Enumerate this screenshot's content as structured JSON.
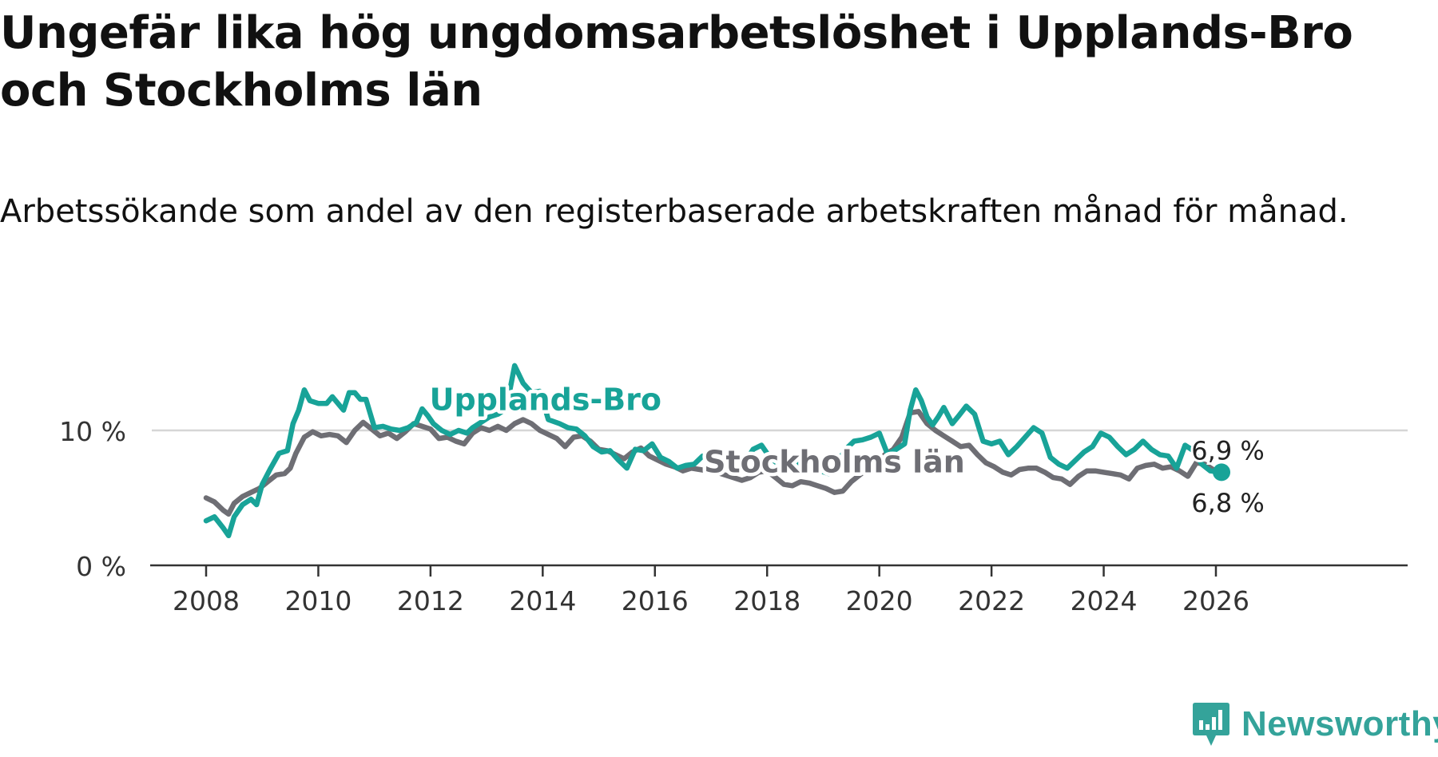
{
  "title": "Ungefär lika hög ungdomsarbetslöshet i Upplands-Bro och Stockholms län",
  "subtitle": "Arbetssökande som andel av den registerbaserade arbetskraften månad för månad.",
  "brand": {
    "name": "Newsworthy",
    "icon": "newsworthy-logo-icon",
    "color": "#34a39a"
  },
  "chart_data": {
    "type": "line",
    "title": "Ungefär lika hög ungdomsarbetslöshet i Upplands-Bro och Stockholms län",
    "subtitle": "Arbetssökande som andel av den registerbaserade arbetskraften månad för månad.",
    "xlabel": "",
    "ylabel": "",
    "xlim": [
      2007.4,
      2027.0
    ],
    "ylim": [
      0,
      15
    ],
    "x_ticks": [
      2008,
      2010,
      2012,
      2014,
      2016,
      2018,
      2020,
      2022,
      2024,
      2026
    ],
    "x_tick_labels": [
      "2008",
      "2010",
      "2012",
      "2014",
      "2016",
      "2018",
      "2020",
      "2022",
      "2024",
      "2026"
    ],
    "y_ticks": [
      0,
      10
    ],
    "y_tick_labels": [
      "0 %",
      "10 %"
    ],
    "grid": "horizontal",
    "series": [
      {
        "name": "Upplands-Bro",
        "color": "#18a398",
        "label_x": 2014.05,
        "label_y": 11.5,
        "end_label": "6,9 %",
        "points": [
          [
            2008.0,
            3.3
          ],
          [
            2008.15,
            3.6
          ],
          [
            2008.3,
            2.8
          ],
          [
            2008.4,
            2.2
          ],
          [
            2008.5,
            3.6
          ],
          [
            2008.65,
            4.5
          ],
          [
            2008.8,
            4.9
          ],
          [
            2008.9,
            4.5
          ],
          [
            2009.0,
            6.0
          ],
          [
            2009.15,
            7.2
          ],
          [
            2009.3,
            8.3
          ],
          [
            2009.45,
            8.5
          ],
          [
            2009.55,
            10.5
          ],
          [
            2009.65,
            11.5
          ],
          [
            2009.75,
            13.0
          ],
          [
            2009.85,
            12.2
          ],
          [
            2010.0,
            12.0
          ],
          [
            2010.15,
            12.0
          ],
          [
            2010.25,
            12.5
          ],
          [
            2010.35,
            12.0
          ],
          [
            2010.45,
            11.5
          ],
          [
            2010.55,
            12.8
          ],
          [
            2010.65,
            12.8
          ],
          [
            2010.75,
            12.3
          ],
          [
            2010.85,
            12.3
          ],
          [
            2011.0,
            10.2
          ],
          [
            2011.15,
            10.3
          ],
          [
            2011.3,
            10.1
          ],
          [
            2011.45,
            10.0
          ],
          [
            2011.6,
            10.2
          ],
          [
            2011.75,
            10.6
          ],
          [
            2011.85,
            11.6
          ],
          [
            2011.95,
            11.1
          ],
          [
            2012.05,
            10.5
          ],
          [
            2012.2,
            10.0
          ],
          [
            2012.35,
            9.7
          ],
          [
            2012.5,
            10.0
          ],
          [
            2012.65,
            9.8
          ],
          [
            2012.75,
            10.2
          ],
          [
            2012.9,
            10.6
          ],
          [
            2013.05,
            11.0
          ],
          [
            2013.2,
            11.2
          ],
          [
            2013.35,
            11.6
          ],
          [
            2013.5,
            14.8
          ],
          [
            2013.65,
            13.5
          ],
          [
            2013.8,
            12.8
          ],
          [
            2013.95,
            12.9
          ],
          [
            2014.1,
            10.8
          ],
          [
            2014.3,
            10.5
          ],
          [
            2014.45,
            10.2
          ],
          [
            2014.6,
            10.1
          ],
          [
            2014.75,
            9.6
          ],
          [
            2014.9,
            8.8
          ],
          [
            2015.05,
            8.4
          ],
          [
            2015.2,
            8.5
          ],
          [
            2015.35,
            7.8
          ],
          [
            2015.5,
            7.2
          ],
          [
            2015.65,
            8.6
          ],
          [
            2015.8,
            8.5
          ],
          [
            2015.95,
            9.0
          ],
          [
            2016.1,
            8.0
          ],
          [
            2016.25,
            7.7
          ],
          [
            2016.4,
            7.2
          ],
          [
            2016.55,
            7.4
          ],
          [
            2016.7,
            7.5
          ],
          [
            2016.85,
            8.1
          ],
          [
            2017.0,
            8.1
          ],
          [
            2017.15,
            7.4
          ],
          [
            2017.3,
            7.2
          ],
          [
            2017.45,
            8.0
          ],
          [
            2017.6,
            7.6
          ],
          [
            2017.75,
            8.6
          ],
          [
            2017.9,
            8.9
          ],
          [
            2018.05,
            8.0
          ],
          [
            2018.2,
            7.5
          ],
          [
            2018.35,
            7.2
          ],
          [
            2018.5,
            7.4
          ],
          [
            2018.65,
            7.6
          ],
          [
            2018.8,
            7.3
          ],
          [
            2018.95,
            7.0
          ],
          [
            2019.1,
            6.8
          ],
          [
            2019.25,
            7.6
          ],
          [
            2019.4,
            8.6
          ],
          [
            2019.55,
            9.2
          ],
          [
            2019.7,
            9.3
          ],
          [
            2019.85,
            9.5
          ],
          [
            2020.0,
            9.8
          ],
          [
            2020.15,
            8.2
          ],
          [
            2020.3,
            8.6
          ],
          [
            2020.45,
            9.0
          ],
          [
            2020.55,
            11.5
          ],
          [
            2020.65,
            13.0
          ],
          [
            2020.75,
            12.2
          ],
          [
            2020.85,
            11.0
          ],
          [
            2020.95,
            10.4
          ],
          [
            2021.05,
            11.0
          ],
          [
            2021.15,
            11.7
          ],
          [
            2021.3,
            10.5
          ],
          [
            2021.4,
            11.0
          ],
          [
            2021.55,
            11.8
          ],
          [
            2021.7,
            11.2
          ],
          [
            2021.85,
            9.2
          ],
          [
            2022.0,
            9.0
          ],
          [
            2022.15,
            9.2
          ],
          [
            2022.3,
            8.2
          ],
          [
            2022.45,
            8.8
          ],
          [
            2022.6,
            9.5
          ],
          [
            2022.75,
            10.2
          ],
          [
            2022.9,
            9.8
          ],
          [
            2023.05,
            8.0
          ],
          [
            2023.2,
            7.5
          ],
          [
            2023.35,
            7.2
          ],
          [
            2023.5,
            7.8
          ],
          [
            2023.65,
            8.4
          ],
          [
            2023.8,
            8.8
          ],
          [
            2023.95,
            9.8
          ],
          [
            2024.1,
            9.5
          ],
          [
            2024.25,
            8.8
          ],
          [
            2024.4,
            8.2
          ],
          [
            2024.55,
            8.6
          ],
          [
            2024.7,
            9.2
          ],
          [
            2024.85,
            8.6
          ],
          [
            2025.0,
            8.2
          ],
          [
            2025.15,
            8.1
          ],
          [
            2025.3,
            7.2
          ],
          [
            2025.45,
            8.9
          ],
          [
            2025.6,
            8.5
          ],
          [
            2025.75,
            7.5
          ],
          [
            2025.9,
            7.0
          ],
          [
            2026.1,
            6.9
          ]
        ]
      },
      {
        "name": "Stockholms län",
        "color": "#6e6e74",
        "label_x": 2019.2,
        "label_y": 6.9,
        "end_label": "6,8 %",
        "points": [
          [
            2008.0,
            5.0
          ],
          [
            2008.15,
            4.7
          ],
          [
            2008.3,
            4.1
          ],
          [
            2008.4,
            3.8
          ],
          [
            2008.5,
            4.6
          ],
          [
            2008.65,
            5.1
          ],
          [
            2008.8,
            5.4
          ],
          [
            2008.95,
            5.7
          ],
          [
            2009.1,
            6.2
          ],
          [
            2009.25,
            6.7
          ],
          [
            2009.4,
            6.8
          ],
          [
            2009.5,
            7.2
          ],
          [
            2009.6,
            8.3
          ],
          [
            2009.75,
            9.5
          ],
          [
            2009.9,
            9.9
          ],
          [
            2010.05,
            9.6
          ],
          [
            2010.2,
            9.7
          ],
          [
            2010.35,
            9.6
          ],
          [
            2010.5,
            9.1
          ],
          [
            2010.65,
            10.0
          ],
          [
            2010.8,
            10.6
          ],
          [
            2010.95,
            10.1
          ],
          [
            2011.1,
            9.6
          ],
          [
            2011.25,
            9.8
          ],
          [
            2011.4,
            9.4
          ],
          [
            2011.55,
            9.9
          ],
          [
            2011.7,
            10.5
          ],
          [
            2011.85,
            10.3
          ],
          [
            2012.0,
            10.1
          ],
          [
            2012.15,
            9.4
          ],
          [
            2012.3,
            9.5
          ],
          [
            2012.45,
            9.2
          ],
          [
            2012.6,
            9.0
          ],
          [
            2012.75,
            9.8
          ],
          [
            2012.9,
            10.2
          ],
          [
            2013.05,
            10.0
          ],
          [
            2013.2,
            10.3
          ],
          [
            2013.35,
            10.0
          ],
          [
            2013.5,
            10.5
          ],
          [
            2013.65,
            10.8
          ],
          [
            2013.8,
            10.5
          ],
          [
            2013.95,
            10.0
          ],
          [
            2014.1,
            9.7
          ],
          [
            2014.25,
            9.4
          ],
          [
            2014.4,
            8.8
          ],
          [
            2014.55,
            9.5
          ],
          [
            2014.7,
            9.6
          ],
          [
            2014.85,
            9.2
          ],
          [
            2015.0,
            8.6
          ],
          [
            2015.15,
            8.5
          ],
          [
            2015.3,
            8.2
          ],
          [
            2015.45,
            7.9
          ],
          [
            2015.6,
            8.4
          ],
          [
            2015.75,
            8.7
          ],
          [
            2015.9,
            8.1
          ],
          [
            2016.05,
            7.8
          ],
          [
            2016.2,
            7.5
          ],
          [
            2016.35,
            7.3
          ],
          [
            2016.5,
            7.0
          ],
          [
            2016.65,
            7.2
          ],
          [
            2016.8,
            7.1
          ],
          [
            2016.95,
            7.0
          ],
          [
            2017.1,
            6.9
          ],
          [
            2017.25,
            6.7
          ],
          [
            2017.4,
            6.5
          ],
          [
            2017.55,
            6.3
          ],
          [
            2017.7,
            6.5
          ],
          [
            2017.85,
            6.9
          ],
          [
            2018.0,
            7.0
          ],
          [
            2018.15,
            6.5
          ],
          [
            2018.3,
            6.0
          ],
          [
            2018.45,
            5.9
          ],
          [
            2018.6,
            6.2
          ],
          [
            2018.75,
            6.1
          ],
          [
            2018.9,
            5.9
          ],
          [
            2019.05,
            5.7
          ],
          [
            2019.2,
            5.4
          ],
          [
            2019.35,
            5.5
          ],
          [
            2019.5,
            6.2
          ],
          [
            2019.65,
            6.7
          ],
          [
            2019.8,
            7.2
          ],
          [
            2019.95,
            7.6
          ],
          [
            2020.1,
            8.2
          ],
          [
            2020.25,
            8.6
          ],
          [
            2020.4,
            9.5
          ],
          [
            2020.55,
            11.3
          ],
          [
            2020.7,
            11.4
          ],
          [
            2020.85,
            10.5
          ],
          [
            2021.0,
            10.0
          ],
          [
            2021.15,
            9.6
          ],
          [
            2021.3,
            9.2
          ],
          [
            2021.45,
            8.8
          ],
          [
            2021.6,
            8.9
          ],
          [
            2021.75,
            8.2
          ],
          [
            2021.9,
            7.6
          ],
          [
            2022.05,
            7.3
          ],
          [
            2022.2,
            6.9
          ],
          [
            2022.35,
            6.7
          ],
          [
            2022.5,
            7.1
          ],
          [
            2022.65,
            7.2
          ],
          [
            2022.8,
            7.2
          ],
          [
            2022.95,
            6.9
          ],
          [
            2023.1,
            6.5
          ],
          [
            2023.25,
            6.4
          ],
          [
            2023.4,
            6.0
          ],
          [
            2023.55,
            6.6
          ],
          [
            2023.7,
            7.0
          ],
          [
            2023.85,
            7.0
          ],
          [
            2024.0,
            6.9
          ],
          [
            2024.15,
            6.8
          ],
          [
            2024.3,
            6.7
          ],
          [
            2024.45,
            6.4
          ],
          [
            2024.6,
            7.2
          ],
          [
            2024.75,
            7.4
          ],
          [
            2024.9,
            7.5
          ],
          [
            2025.05,
            7.2
          ],
          [
            2025.2,
            7.3
          ],
          [
            2025.35,
            7.0
          ],
          [
            2025.5,
            6.6
          ],
          [
            2025.65,
            7.6
          ],
          [
            2025.8,
            7.5
          ],
          [
            2025.95,
            7.1
          ],
          [
            2026.1,
            6.8
          ]
        ]
      }
    ]
  }
}
